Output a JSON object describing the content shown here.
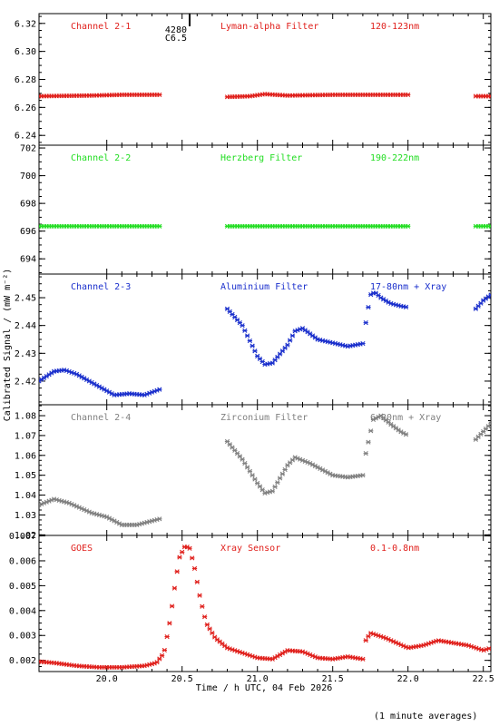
{
  "chart_data": {
    "type": "scatter",
    "xlabel": "Time / h UTC, 04 Feb 2026",
    "ylabel": "Calibrated Signal / (mW m⁻²)",
    "footnote": "(1 minute averages)",
    "xlim": [
      19.55,
      22.55
    ],
    "xticks": [
      "20.0",
      "20.5",
      "21.0",
      "21.5",
      "22.0",
      "22.5"
    ],
    "annotation": {
      "lines": [
        "4280",
        "C6.5"
      ],
      "x": 20.55
    },
    "panels": [
      {
        "channel": "Channel 2-1",
        "filter": "Lyman-alpha Filter",
        "band": "120-123nm",
        "color": "#e0201c",
        "ylim": [
          6.233,
          6.327
        ],
        "yticks": [
          "6.24",
          "6.26",
          "6.28",
          "6.30",
          "6.32"
        ],
        "segments": [
          {
            "t": [
              19.55,
              19.9,
              20.1,
              20.35
            ],
            "v": [
              6.268,
              6.2685,
              6.269,
              6.269
            ]
          },
          {
            "t": [
              20.8,
              20.95,
              21.05,
              21.2,
              21.5,
              22.0
            ],
            "v": [
              6.2675,
              6.268,
              6.2695,
              6.2685,
              6.269,
              6.269
            ]
          },
          {
            "t": [
              22.45,
              22.55
            ],
            "v": [
              6.268,
              6.268
            ]
          }
        ]
      },
      {
        "channel": "Channel 2-2",
        "filter": "Herzberg Filter",
        "band": "190-222nm",
        "color": "#22dd22",
        "ylim": [
          692.9,
          702.2
        ],
        "yticks": [
          "694",
          "696",
          "698",
          "700",
          "702"
        ],
        "segments": [
          {
            "t": [
              19.55,
              20.35
            ],
            "v": [
              696.35,
              696.35
            ]
          },
          {
            "t": [
              20.8,
              22.0
            ],
            "v": [
              696.35,
              696.35
            ]
          },
          {
            "t": [
              22.45,
              22.55
            ],
            "v": [
              696.35,
              696.35
            ]
          }
        ]
      },
      {
        "channel": "Channel 2-3",
        "filter": "Aluminium Filter",
        "band": "17-80nm + Xray",
        "color": "#1a2fcc",
        "ylim": [
          2.4115,
          2.4585
        ],
        "yticks": [
          "2.42",
          "2.43",
          "2.44",
          "2.45"
        ],
        "segments": [
          {
            "t": [
              19.55,
              19.65,
              19.72,
              19.8,
              19.9,
              20.0,
              20.05,
              20.15,
              20.25,
              20.35
            ],
            "v": [
              2.42,
              2.4235,
              2.424,
              2.4225,
              2.4195,
              2.4165,
              2.415,
              2.4155,
              2.415,
              2.417
            ]
          },
          {
            "t": [
              20.8,
              20.9,
              21.0,
              21.05,
              21.1,
              21.2,
              21.25,
              21.3,
              21.4,
              21.6,
              21.7
            ],
            "v": [
              2.446,
              2.44,
              2.429,
              2.426,
              2.4265,
              2.433,
              2.438,
              2.439,
              2.435,
              2.4325,
              2.4335
            ]
          },
          {
            "t": [
              21.72,
              21.75,
              21.78,
              21.82,
              21.88,
              21.95,
              22.0
            ],
            "v": [
              2.441,
              2.451,
              2.452,
              2.45,
              2.448,
              2.447,
              2.4465
            ]
          },
          {
            "t": [
              22.45,
              22.5,
              22.55
            ],
            "v": [
              2.446,
              2.449,
              2.451
            ]
          }
        ]
      },
      {
        "channel": "Channel 2-4",
        "filter": "Zirconium Filter",
        "band": "6-20nm + Xray",
        "color": "#808080",
        "ylim": [
          1.0197,
          1.0855
        ],
        "yticks": [
          "1.02",
          "1.03",
          "1.04",
          "1.05",
          "1.06",
          "1.07",
          "1.08"
        ],
        "segments": [
          {
            "t": [
              19.55,
              19.65,
              19.75,
              19.9,
              20.0,
              20.1,
              20.2,
              20.35
            ],
            "v": [
              1.035,
              1.038,
              1.036,
              1.031,
              1.029,
              1.025,
              1.025,
              1.028
            ]
          },
          {
            "t": [
              20.8,
              20.9,
              21.0,
              21.05,
              21.1,
              21.2,
              21.25,
              21.35,
              21.5,
              21.6,
              21.7
            ],
            "v": [
              1.067,
              1.058,
              1.046,
              1.041,
              1.042,
              1.055,
              1.059,
              1.056,
              1.05,
              1.049,
              1.05
            ]
          },
          {
            "t": [
              21.72,
              21.77,
              21.82,
              21.88,
              21.95,
              22.0
            ],
            "v": [
              1.061,
              1.078,
              1.08,
              1.076,
              1.072,
              1.07
            ]
          },
          {
            "t": [
              22.45,
              22.5,
              22.55
            ],
            "v": [
              1.068,
              1.072,
              1.076
            ]
          }
        ]
      },
      {
        "channel": "GOES",
        "filter": "Xray Sensor",
        "band": "0.1-0.8nm",
        "color": "#e0201c",
        "ylim": [
          0.00155,
          0.00702
        ],
        "yticks": [
          "0.002",
          "0.003",
          "0.004",
          "0.005",
          "0.006",
          "0.007"
        ],
        "segments": [
          {
            "t": [
              19.55,
              19.65,
              19.8,
              19.95,
              20.1,
              20.25,
              20.33,
              20.38,
              20.42,
              20.45,
              20.48,
              20.52,
              20.55,
              20.58,
              20.62,
              20.66,
              20.72,
              20.8,
              20.9,
              21.0,
              21.1,
              21.2,
              21.3,
              21.4,
              21.5,
              21.6,
              21.7
            ],
            "v": [
              0.00195,
              0.0019,
              0.00178,
              0.00172,
              0.00172,
              0.00178,
              0.0019,
              0.0023,
              0.0036,
              0.0049,
              0.0061,
              0.0066,
              0.0065,
              0.0058,
              0.0045,
              0.0035,
              0.0029,
              0.0025,
              0.0023,
              0.0021,
              0.00205,
              0.0024,
              0.00235,
              0.0021,
              0.00205,
              0.00215,
              0.00205
            ]
          },
          {
            "t": [
              21.72,
              21.75,
              21.85,
              22.0,
              22.1,
              22.2,
              22.3,
              22.4,
              22.5,
              22.55
            ],
            "v": [
              0.0028,
              0.0031,
              0.0029,
              0.0025,
              0.0026,
              0.0028,
              0.0027,
              0.0026,
              0.0024,
              0.0025
            ]
          }
        ]
      }
    ]
  }
}
